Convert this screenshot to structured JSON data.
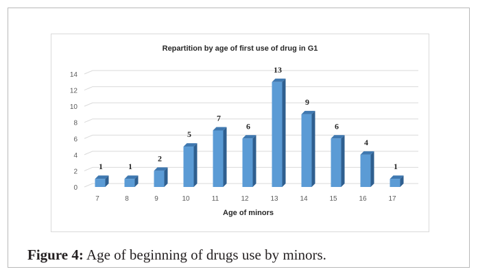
{
  "figure": {
    "caption_label": "Figure 4:",
    "caption_text": " Age of beginning of drugs use by minors."
  },
  "chart_data": {
    "type": "bar",
    "title": "Repartition by age of first use of drug in G1",
    "xlabel": "Age of minors",
    "ylabel": "",
    "categories": [
      "7",
      "8",
      "9",
      "10",
      "11",
      "12",
      "13",
      "14",
      "15",
      "16",
      "17"
    ],
    "values": [
      1,
      1,
      2,
      5,
      7,
      6,
      13,
      9,
      6,
      4,
      1
    ],
    "ylim": [
      0,
      14
    ],
    "yticks": [
      0,
      2,
      4,
      6,
      8,
      10,
      12,
      14
    ],
    "grid": true,
    "data_labels": true,
    "legend": "none",
    "bar_color": "#5b9bd5",
    "bar_side_color": "#2f5f8f",
    "bar_top_color": "#3f78b0"
  }
}
